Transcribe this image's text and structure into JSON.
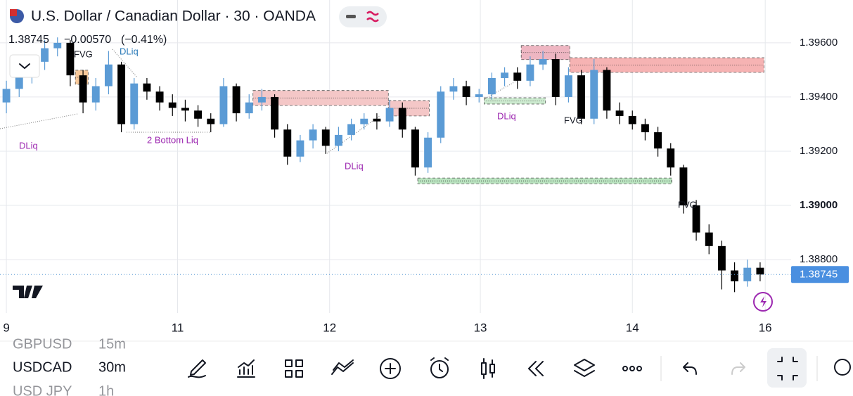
{
  "header": {
    "title": "U.S. Dollar / Canadian Dollar · 30 · OANDA",
    "price": "1.38745",
    "change": "−0.00570",
    "change_pct": "(−0.41%)"
  },
  "chart_data": {
    "type": "candlestick",
    "up_color": "#5b9bd5",
    "down_color": "#000000",
    "xlim": [
      0,
      60
    ],
    "xticks": [
      {
        "value": 0.5,
        "label": "9"
      },
      {
        "value": 13.9,
        "label": "11"
      },
      {
        "value": 25.8,
        "label": "12"
      },
      {
        "value": 37.6,
        "label": "13"
      },
      {
        "value": 49.5,
        "label": "14"
      },
      {
        "value": 59.9,
        "label": "16"
      }
    ],
    "ylim": [
      1.38603,
      1.39758
    ],
    "yticks": [
      {
        "value": 1.388,
        "label": "1.38800"
      },
      {
        "value": 1.39,
        "label": "1.39000"
      },
      {
        "value": 1.392,
        "label": "1.39200"
      },
      {
        "value": 1.394,
        "label": "1.39400"
      },
      {
        "value": 1.396,
        "label": "1.39600"
      }
    ],
    "grid": true,
    "last_price": 1.38745,
    "candles": [
      [
        1.3938,
        1.3946,
        1.3934,
        1.3943
      ],
      [
        1.3943,
        1.3951,
        1.394,
        1.3948
      ],
      [
        1.3948,
        1.3955,
        1.3945,
        1.3953
      ],
      [
        1.3953,
        1.3961,
        1.395,
        1.3958
      ],
      [
        1.3958,
        1.3962,
        1.3955,
        1.396
      ],
      [
        1.396,
        1.3961,
        1.3944,
        1.3948
      ],
      [
        1.3948,
        1.395,
        1.3934,
        1.3938
      ],
      [
        1.3938,
        1.3947,
        1.3935,
        1.3944
      ],
      [
        1.3944,
        1.3957,
        1.3941,
        1.3952
      ],
      [
        1.3952,
        1.3953,
        1.3927,
        1.393
      ],
      [
        1.393,
        1.3947,
        1.3928,
        1.3945
      ],
      [
        1.3945,
        1.3947,
        1.3939,
        1.3942
      ],
      [
        1.3942,
        1.3944,
        1.3935,
        1.3938
      ],
      [
        1.3938,
        1.3941,
        1.3933,
        1.3936
      ],
      [
        1.3936,
        1.3939,
        1.3931,
        1.3935
      ],
      [
        1.3935,
        1.3937,
        1.3929,
        1.3932
      ],
      [
        1.3932,
        1.3934,
        1.3927,
        1.393
      ],
      [
        1.393,
        1.3947,
        1.3929,
        1.3944
      ],
      [
        1.3944,
        1.3945,
        1.3931,
        1.3934
      ],
      [
        1.3934,
        1.3941,
        1.3932,
        1.3938
      ],
      [
        1.3938,
        1.3943,
        1.3935,
        1.394
      ],
      [
        1.394,
        1.3941,
        1.3925,
        1.3928
      ],
      [
        1.3928,
        1.393,
        1.3915,
        1.3918
      ],
      [
        1.3918,
        1.3926,
        1.3916,
        1.3924
      ],
      [
        1.3924,
        1.393,
        1.3921,
        1.3928
      ],
      [
        1.3928,
        1.3929,
        1.3919,
        1.3922
      ],
      [
        1.3922,
        1.3929,
        1.392,
        1.3926
      ],
      [
        1.3926,
        1.3932,
        1.3924,
        1.393
      ],
      [
        1.393,
        1.3934,
        1.3928,
        1.3932
      ],
      [
        1.3932,
        1.3934,
        1.3928,
        1.3931
      ],
      [
        1.3931,
        1.3939,
        1.3929,
        1.3936
      ],
      [
        1.3936,
        1.3938,
        1.3925,
        1.3928
      ],
      [
        1.3928,
        1.3929,
        1.3911,
        1.3914
      ],
      [
        1.3914,
        1.3927,
        1.3912,
        1.3925
      ],
      [
        1.3925,
        1.3944,
        1.3923,
        1.3942
      ],
      [
        1.3942,
        1.3947,
        1.3939,
        1.3944
      ],
      [
        1.3944,
        1.3946,
        1.3937,
        1.394
      ],
      [
        1.394,
        1.3943,
        1.3938,
        1.3941
      ],
      [
        1.3941,
        1.3949,
        1.3939,
        1.3947
      ],
      [
        1.3947,
        1.3951,
        1.3944,
        1.3949
      ],
      [
        1.3949,
        1.3951,
        1.3943,
        1.3946
      ],
      [
        1.3946,
        1.3955,
        1.3944,
        1.3952
      ],
      [
        1.3952,
        1.3957,
        1.395,
        1.3954
      ],
      [
        1.3954,
        1.3956,
        1.3937,
        1.394
      ],
      [
        1.394,
        1.3951,
        1.3938,
        1.3948
      ],
      [
        1.3948,
        1.395,
        1.393,
        1.3932
      ],
      [
        1.3932,
        1.3954,
        1.393,
        1.395
      ],
      [
        1.395,
        1.3951,
        1.3932,
        1.3935
      ],
      [
        1.3935,
        1.3938,
        1.393,
        1.3933
      ],
      [
        1.3933,
        1.3935,
        1.3928,
        1.393
      ],
      [
        1.393,
        1.3932,
        1.3924,
        1.3927
      ],
      [
        1.3927,
        1.3929,
        1.3918,
        1.3921
      ],
      [
        1.3921,
        1.3923,
        1.3911,
        1.3914
      ],
      [
        1.3914,
        1.3915,
        1.3897,
        1.39
      ],
      [
        1.39,
        1.3902,
        1.3887,
        1.389
      ],
      [
        1.389,
        1.3893,
        1.3882,
        1.3885
      ],
      [
        1.3885,
        1.3887,
        1.3869,
        1.3876
      ],
      [
        1.3876,
        1.3879,
        1.3868,
        1.3872
      ],
      [
        1.3872,
        1.388,
        1.387,
        1.3877
      ],
      [
        1.3877,
        1.3879,
        1.3872,
        1.38745
      ]
    ],
    "zones": [
      {
        "x0": 19.8,
        "x1": 30.4,
        "top": 1.39424,
        "bottom": 1.39369,
        "color": "#f4c7c7"
      },
      {
        "x0": 30.4,
        "x1": 33.6,
        "top": 1.39387,
        "bottom": 1.3933,
        "color": "#f4c7c7"
      },
      {
        "x0": 40.8,
        "x1": 44.6,
        "top": 1.3959,
        "bottom": 1.39538,
        "color": "#eeb6c2"
      },
      {
        "x0": 44.6,
        "x1": 59.8,
        "top": 1.39545,
        "bottom": 1.39491,
        "color": "#f6b3b3"
      },
      {
        "x0": 37.9,
        "x1": 42.7,
        "top": 1.39397,
        "bottom": 1.39374,
        "color": "#cdebd0"
      },
      {
        "x0": 32.7,
        "x1": 52.6,
        "top": 1.39101,
        "bottom": 1.3908,
        "color": "#b9e3bf"
      },
      {
        "x0": 5.9,
        "x1": 6.9,
        "top": 1.39499,
        "bottom": 1.39447,
        "color": "#f8c99a"
      }
    ],
    "annotations": [
      "FVG",
      "DLiq",
      "DLiq",
      "2 Bottom Liq",
      "DLiq",
      "DLiq",
      "FVG",
      "FVG"
    ]
  },
  "watchlist": [
    {
      "symbol": "GBPUSD",
      "interval": "15m"
    },
    {
      "symbol": "USDCAD",
      "interval": "30m"
    },
    {
      "symbol": "USD JPY",
      "interval": "1h"
    }
  ]
}
